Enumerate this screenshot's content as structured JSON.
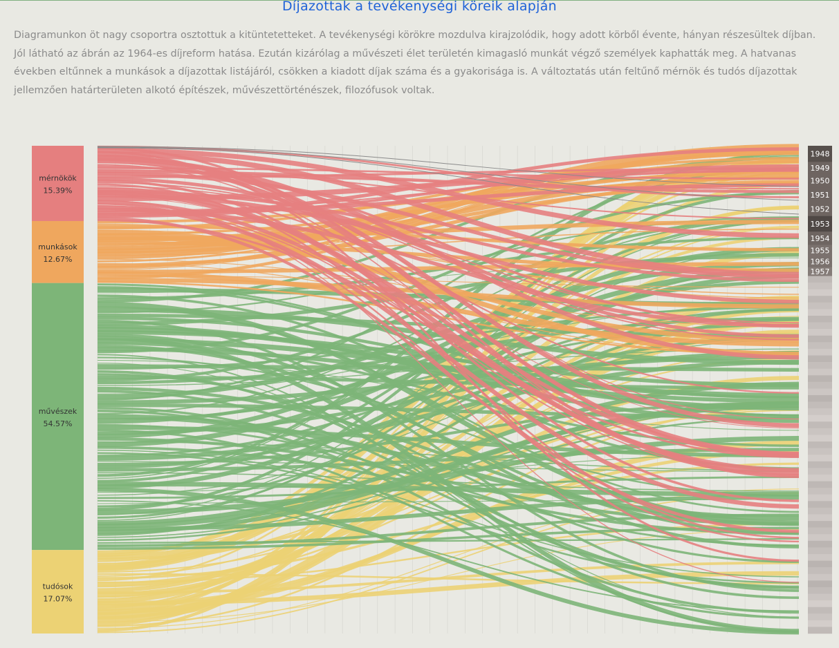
{
  "header": {
    "title": "Díjazottak a tevékenységi köreik alapján",
    "description": "Diagramunkon öt nagy csoportra osztottuk a kitüntetetteket. A tevékenységi körökre mozdulva kirajzolódik, hogy adott körből évente, hányan részesültek díjban. Jól látható az ábrán az 1964-es díjreform hatása. Ezután kizárólag a művészeti élet területén kimagasló munkát végző személyek kaphatták meg. A hatvanas években eltűnnek a munkások a díjazottak listájáról, csökken a kiadott díjak száma és a gyakorisága is. A változtatás után feltűnő mérnök és tudós díjazottak jellemzően határterületen alkotó építészek, művészettörténészek, filozófusok voltak."
  },
  "chart_data": {
    "type": "sankey",
    "title": "Díjazottak a tevékenységi köreik alapján",
    "categories": [
      {
        "name": "mérnökök",
        "share_label": "15.39%",
        "share": 15.39,
        "color": "#e57f7f"
      },
      {
        "name": "munkások",
        "share_label": "12.67%",
        "share": 12.67,
        "color": "#efa75e"
      },
      {
        "name": "művészek",
        "share_label": "54.57%",
        "share": 54.57,
        "color": "#7db578"
      },
      {
        "name": "tudósok",
        "share_label": "17.07%",
        "share": 17.07,
        "color": "#ecd274"
      }
    ],
    "years_labeled": [
      "1948",
      "1949",
      "1950",
      "1951",
      "1952",
      "1953",
      "1954",
      "1955",
      "1956",
      "1957"
    ],
    "year_shares": [
      3.3,
      2.4,
      2.9,
      2.9,
      2.9,
      3.2,
      2.7,
      2.3,
      2.3,
      1.8
    ],
    "unlabeled_year_count": 54,
    "colors": {
      "year_block_dark": "#55504c",
      "year_block_light": "#c8c1bd"
    }
  }
}
